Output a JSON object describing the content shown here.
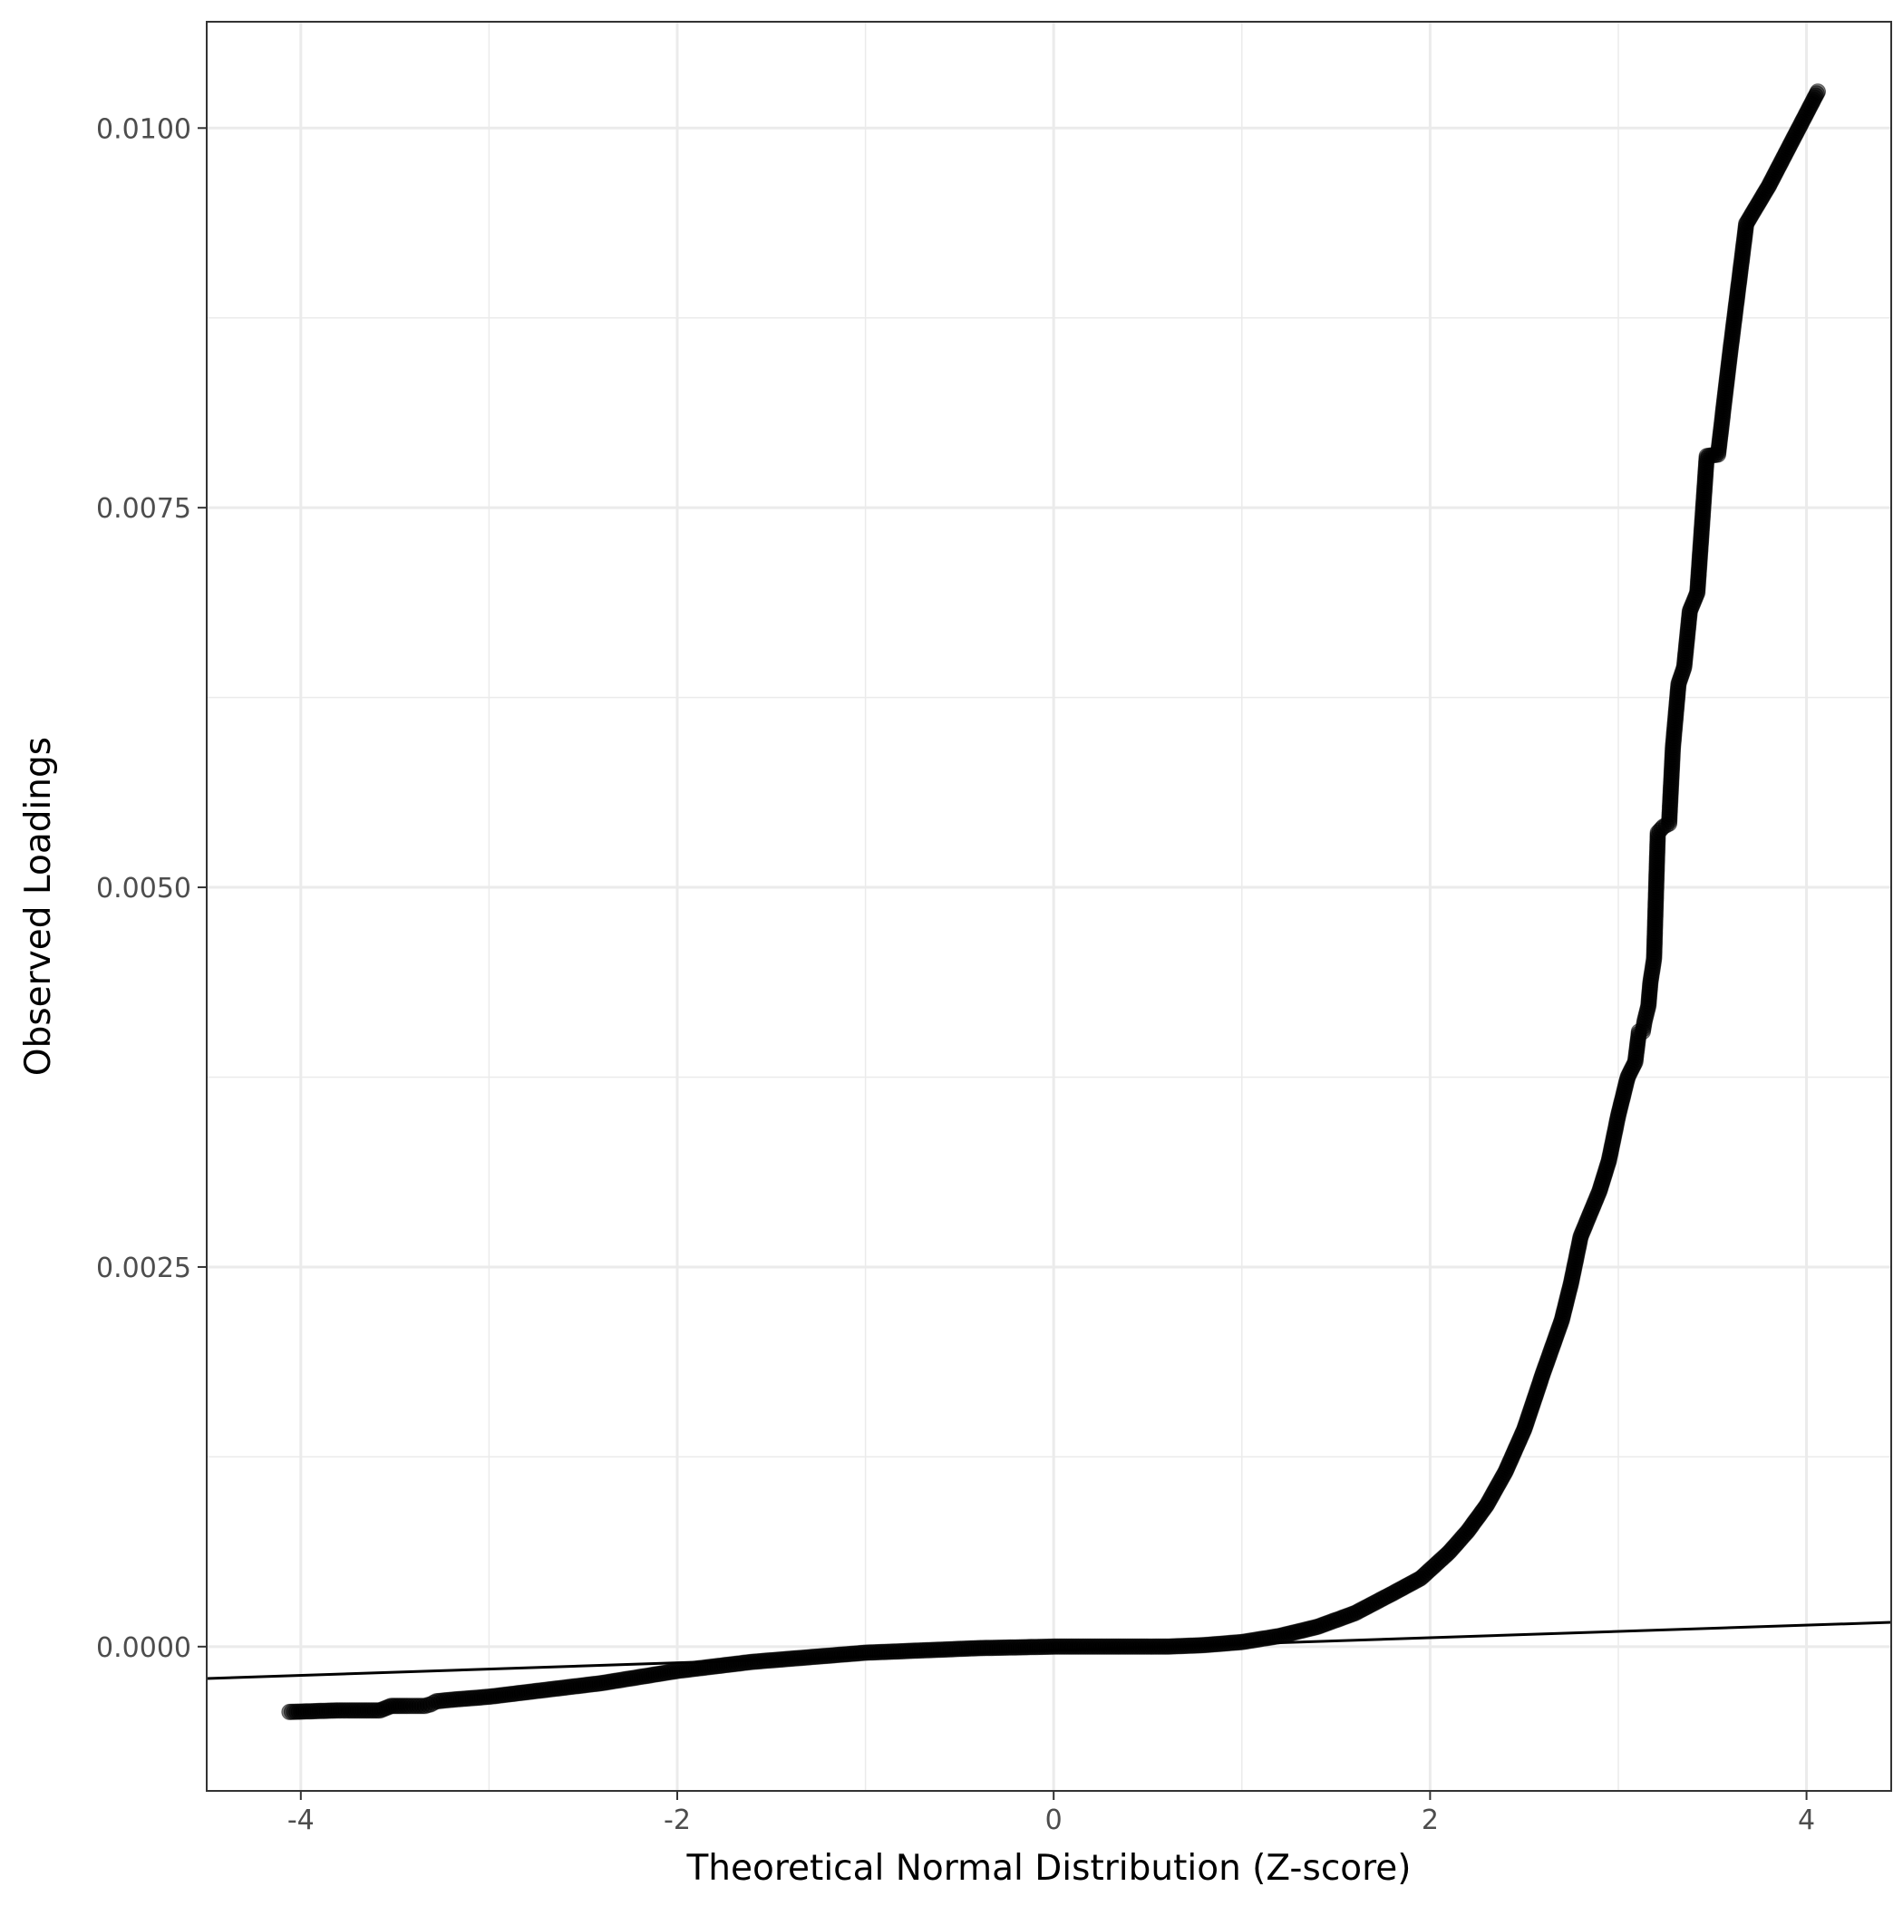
{
  "chart_data": {
    "type": "scatter",
    "title": "",
    "xlabel": "Theoretical Normal Distribution (Z-score)",
    "ylabel": "Observed Loadings",
    "xlim": [
      -4.5,
      4.45
    ],
    "ylim": [
      -0.00095,
      0.0107
    ],
    "x_ticks": [
      -4,
      -2,
      0,
      2,
      4
    ],
    "x_tick_labels": [
      "-4",
      "-2",
      "0",
      "2",
      "4"
    ],
    "y_ticks": [
      0,
      0.0025,
      0.005,
      0.0075,
      0.01
    ],
    "y_tick_labels": [
      "0.0000",
      "0.0025",
      "0.0050",
      "0.0075",
      "0.0100"
    ],
    "grid": true,
    "legend": "none",
    "point_color": "#000000",
    "point_opacity": 0.5,
    "line_color": "#000000",
    "reference_line": {
      "x": [
        -4.5,
        4.45
      ],
      "y": [
        -0.00021,
        0.00016
      ]
    },
    "series": [
      {
        "values": [
          [
            -4.06,
            -0.00043
          ],
          [
            -3.8,
            -0.00042
          ],
          [
            -3.67,
            -0.00042
          ],
          [
            -3.58,
            -0.00042
          ],
          [
            -3.52,
            -0.00039
          ],
          [
            -3.47,
            -0.00039
          ],
          [
            -3.43,
            -0.00039
          ],
          [
            -3.4,
            -0.00039
          ],
          [
            -3.37,
            -0.00039
          ],
          [
            -3.34,
            -0.00039
          ],
          [
            -3.31,
            -0.00038
          ],
          [
            -3.28,
            -0.00036
          ],
          [
            -3.2,
            -0.00035
          ],
          [
            -3.0,
            -0.00033
          ],
          [
            -2.8,
            -0.0003
          ],
          [
            -2.6,
            -0.00027
          ],
          [
            -2.4,
            -0.00024
          ],
          [
            -2.2,
            -0.0002
          ],
          [
            -2.0,
            -0.00016
          ],
          [
            -1.8,
            -0.00013
          ],
          [
            -1.6,
            -0.0001
          ],
          [
            -1.4,
            -8e-05
          ],
          [
            -1.2,
            -6e-05
          ],
          [
            -1.0,
            -4e-05
          ],
          [
            -0.8,
            -3e-05
          ],
          [
            -0.6,
            -2e-05
          ],
          [
            -0.4,
            -1e-05
          ],
          [
            -0.2,
            -5e-06
          ],
          [
            0.0,
            0.0
          ],
          [
            0.2,
            0.0
          ],
          [
            0.4,
            0.0
          ],
          [
            0.6,
            0.0
          ],
          [
            0.8,
            1e-05
          ],
          [
            1.0,
            3e-05
          ],
          [
            1.2,
            7e-05
          ],
          [
            1.4,
            0.00013
          ],
          [
            1.6,
            0.00022
          ],
          [
            1.8,
            0.00035
          ],
          [
            1.95,
            0.00045
          ],
          [
            2.1,
            0.00062
          ],
          [
            2.2,
            0.00076
          ],
          [
            2.3,
            0.00093
          ],
          [
            2.4,
            0.00115
          ],
          [
            2.5,
            0.00143
          ],
          [
            2.6,
            0.0018
          ],
          [
            2.7,
            0.00215
          ],
          [
            2.75,
            0.0024
          ],
          [
            2.8,
            0.0027
          ],
          [
            2.85,
            0.00285
          ],
          [
            2.9,
            0.003
          ],
          [
            2.95,
            0.0032
          ],
          [
            3.0,
            0.0035
          ],
          [
            3.05,
            0.00375
          ],
          [
            3.09,
            0.00385
          ],
          [
            3.11,
            0.00405
          ],
          [
            3.13,
            0.00405
          ],
          [
            3.14,
            0.00412
          ],
          [
            3.16,
            0.00422
          ],
          [
            3.17,
            0.00437
          ],
          [
            3.19,
            0.00453
          ],
          [
            3.21,
            0.00536
          ],
          [
            3.24,
            0.0054
          ],
          [
            3.27,
            0.00542
          ],
          [
            3.29,
            0.00592
          ],
          [
            3.32,
            0.00634
          ],
          [
            3.35,
            0.00645
          ],
          [
            3.38,
            0.00682
          ],
          [
            3.42,
            0.00694
          ],
          [
            3.47,
            0.00784
          ],
          [
            3.53,
            0.00785
          ],
          [
            3.59,
            0.00848
          ],
          [
            3.68,
            0.00937
          ],
          [
            3.8,
            0.00962
          ],
          [
            4.06,
            0.01024
          ]
        ]
      }
    ]
  }
}
